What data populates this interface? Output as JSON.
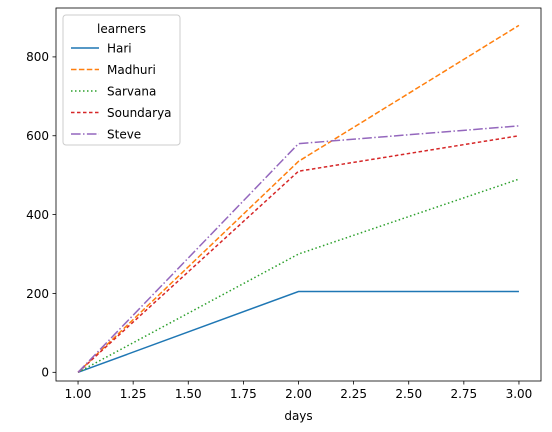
{
  "chart_data": {
    "type": "line",
    "xlabel": "days",
    "ylabel": "",
    "x": [
      1,
      2,
      3
    ],
    "xlim": [
      0.9,
      3.1
    ],
    "ylim": [
      -22,
      924
    ],
    "xticks": [
      1.0,
      1.25,
      1.5,
      1.75,
      2.0,
      2.25,
      2.5,
      2.75,
      3.0
    ],
    "xtick_labels": [
      "1.00",
      "1.25",
      "1.50",
      "1.75",
      "2.00",
      "2.25",
      "2.50",
      "2.75",
      "3.00"
    ],
    "yticks": [
      0,
      200,
      400,
      600,
      800
    ],
    "ytick_labels": [
      "0",
      "200",
      "400",
      "600",
      "800"
    ],
    "grid": false,
    "legend": {
      "title": "learners",
      "placement": "top-left"
    },
    "series": [
      {
        "name": "Hari",
        "values": [
          0,
          205,
          205
        ],
        "color": "#1f77b4",
        "dash": "solid"
      },
      {
        "name": "Madhuri",
        "values": [
          0,
          535,
          880
        ],
        "color": "#ff7f0e",
        "dash": "dashed"
      },
      {
        "name": "Sarvana",
        "values": [
          0,
          300,
          490
        ],
        "color": "#2ca02c",
        "dash": "dotted"
      },
      {
        "name": "Soundarya",
        "values": [
          0,
          510,
          600
        ],
        "color": "#d62728",
        "dash": "loosely-dashed"
      },
      {
        "name": "Steve",
        "values": [
          0,
          580,
          625
        ],
        "color": "#9467bd",
        "dash": "dashdot"
      }
    ]
  }
}
